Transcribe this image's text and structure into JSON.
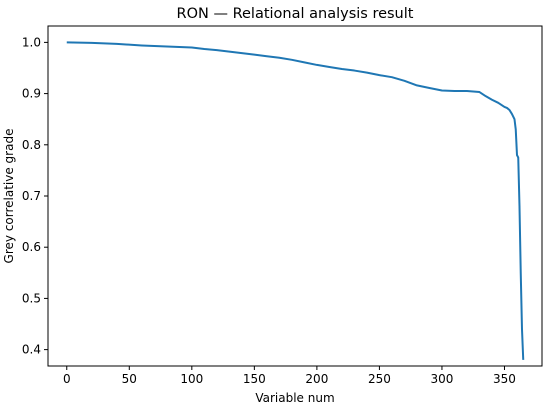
{
  "chart_data": {
    "type": "line",
    "title": "RON — Relational analysis result",
    "xlabel": "Variable num",
    "ylabel": "Grey correlative grade",
    "xlim": [
      -15,
      380
    ],
    "ylim": [
      0.368,
      1.032
    ],
    "grid": false,
    "legend": "none",
    "xticks": [
      0,
      50,
      100,
      150,
      200,
      250,
      300,
      350
    ],
    "xtick_labels": [
      "0",
      "50",
      "100",
      "150",
      "200",
      "250",
      "300",
      "350"
    ],
    "yticks": [
      0.4,
      0.5,
      0.6,
      0.7,
      0.8,
      0.9,
      1.0
    ],
    "ytick_labels": [
      "0.4",
      "0.5",
      "0.6",
      "0.7",
      "0.8",
      "0.9",
      "1.0"
    ],
    "series": [
      {
        "color": "#1f77b4",
        "x": [
          0,
          20,
          40,
          60,
          80,
          100,
          110,
          120,
          130,
          140,
          150,
          160,
          170,
          180,
          190,
          200,
          210,
          220,
          230,
          240,
          250,
          260,
          270,
          280,
          290,
          300,
          310,
          320,
          330,
          335,
          340,
          345,
          350,
          352,
          354,
          356,
          358,
          359,
          360,
          361,
          362,
          363,
          364,
          365
        ],
        "y": [
          1.0,
          0.999,
          0.997,
          0.994,
          0.992,
          0.99,
          0.987,
          0.985,
          0.982,
          0.979,
          0.976,
          0.973,
          0.97,
          0.966,
          0.961,
          0.956,
          0.952,
          0.948,
          0.945,
          0.941,
          0.936,
          0.932,
          0.925,
          0.916,
          0.911,
          0.906,
          0.905,
          0.905,
          0.903,
          0.895,
          0.888,
          0.882,
          0.874,
          0.872,
          0.868,
          0.86,
          0.85,
          0.83,
          0.78,
          0.775,
          0.68,
          0.55,
          0.44,
          0.38
        ]
      }
    ]
  }
}
